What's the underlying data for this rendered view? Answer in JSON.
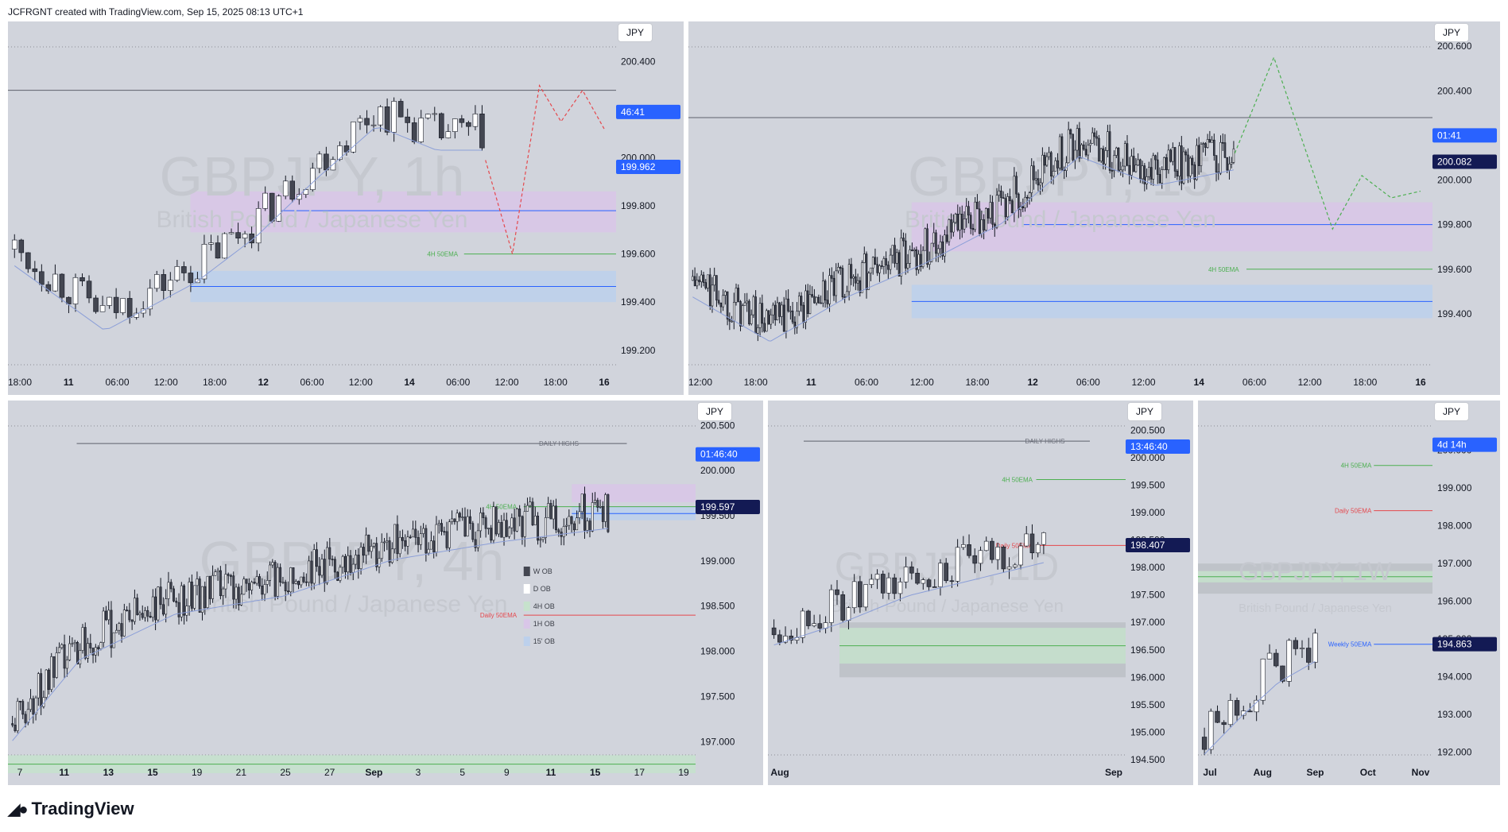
{
  "header": {
    "credit": "JCFRGNT created with TradingView.com, Sep 15, 2025 08:13 UTC+1"
  },
  "footer": {
    "brand": "TradingView",
    "logo_icon": "tradingview-logo-icon"
  },
  "colors": {
    "panel_bg": "#d1d4dc",
    "bull": "#ffffff",
    "bear": "#434651",
    "wick": "#131722",
    "ema": "#8c9fd8",
    "zone_blue": "#bcd0ec",
    "zone_purple": "#d9c6e8",
    "zone_green": "#c6e2cc",
    "zone_grey": "#bcbfc6",
    "price_tag": "#2962ff",
    "price_tag_dark": "#131a54",
    "projection_red": "#e5484d",
    "projection_green": "#4caf50"
  },
  "chart_data": [
    {
      "id": "p1",
      "type": "candlestick",
      "watermark": "GBPJPY, 1h",
      "watermark_sub": "British Pound / Japanese Yen",
      "currency": "JPY",
      "ylim": [
        199.12,
        200.5
      ],
      "y_ticks": [
        "200.400",
        "200",
        "200.000",
        "199.800",
        "199.600",
        "199.400",
        "199.200"
      ],
      "y_tick_values": [
        200.4,
        200.2,
        200.0,
        199.8,
        199.6,
        199.4,
        199.2
      ],
      "x_ticks": [
        "18:00",
        "11",
        "06:00",
        "12:00",
        "18:00",
        "12",
        "06:00",
        "12:00",
        "14",
        "06:00",
        "12:00",
        "18:00",
        "16"
      ],
      "countdown": "46:41",
      "countdown_value": 200.19,
      "last_price": "199.962",
      "last_value": 199.962,
      "ema_label": "4H 50EMA",
      "ema_value": 199.6,
      "level": 200.28,
      "trend": [
        [
          0,
          199.62
        ],
        [
          12,
          199.35
        ],
        [
          24,
          199.55
        ],
        [
          32,
          199.74
        ],
        [
          40,
          199.98
        ],
        [
          48,
          200.2
        ],
        [
          56,
          200.1
        ],
        [
          62,
          200.1
        ]
      ],
      "projection": [
        [
          0,
          199.99
        ],
        [
          5,
          199.6
        ],
        [
          10,
          200.3
        ],
        [
          14,
          200.15
        ],
        [
          18,
          200.28
        ],
        [
          22,
          200.12
        ]
      ],
      "projection_color": "red",
      "zones": [
        [
          199.86,
          199.69,
          "purple"
        ],
        [
          199.78,
          199.76,
          "blue_line"
        ],
        [
          199.53,
          199.4,
          "blue"
        ]
      ]
    },
    {
      "id": "p2",
      "type": "candlestick",
      "watermark": "GBPJPY, 15",
      "watermark_sub": "British Pound / Japanese Yen",
      "currency": "JPY",
      "ylim": [
        199.15,
        200.64
      ],
      "y_ticks": [
        "200.600",
        "200.400",
        "200",
        "200.000",
        "199.800",
        "199.600",
        "199.400"
      ],
      "y_tick_values": [
        200.6,
        200.4,
        200.2,
        200.0,
        199.8,
        199.6,
        199.4
      ],
      "x_ticks": [
        "12:00",
        "18:00",
        "11",
        "06:00",
        "12:00",
        "18:00",
        "12",
        "06:00",
        "12:00",
        "14",
        "06:00",
        "12:00",
        "18:00",
        "16"
      ],
      "countdown": "01:41",
      "countdown_value": 200.2,
      "last_price": "200.082",
      "last_value": 200.082,
      "ema_label": "4H 50EMA",
      "ema_value": 199.6,
      "level": 200.28,
      "trend": [
        [
          0,
          199.55
        ],
        [
          35,
          199.35
        ],
        [
          70,
          199.55
        ],
        [
          105,
          199.7
        ],
        [
          140,
          199.88
        ],
        [
          175,
          200.18
        ],
        [
          210,
          200.05
        ],
        [
          245,
          200.12
        ]
      ],
      "projection": [
        [
          0,
          200.12
        ],
        [
          8,
          200.55
        ],
        [
          20,
          199.78
        ],
        [
          26,
          200.02
        ],
        [
          32,
          199.92
        ],
        [
          38,
          199.95
        ]
      ],
      "projection_color": "green",
      "zones": [
        [
          199.9,
          199.68,
          "purple"
        ],
        [
          199.8,
          199.76,
          "blue_line"
        ],
        [
          199.53,
          199.38,
          "blue"
        ]
      ]
    },
    {
      "id": "p3",
      "type": "candlestick",
      "watermark": "GBPJPY, 4h",
      "watermark_sub": "British Pound / Japanese Yen",
      "currency": "JPY",
      "ylim": [
        196.8,
        200.6
      ],
      "y_ticks": [
        "200.500",
        "200.000",
        "199.500",
        "199.000",
        "198.500",
        "198.000",
        "197.500",
        "197.000"
      ],
      "y_tick_values": [
        200.5,
        200.0,
        199.5,
        199.0,
        198.5,
        198.0,
        197.5,
        197.0
      ],
      "x_ticks": [
        "7",
        "11",
        "13",
        "15",
        "19",
        "21",
        "25",
        "27",
        "Sep",
        "3",
        "5",
        "9",
        "11",
        "15",
        "17",
        "19"
      ],
      "countdown": "01:46:40",
      "countdown_value": 200.18,
      "last_price": "199.597",
      "last_value": 199.597,
      "ema_label": "4H 50EMA",
      "ema_value": 199.6,
      "daily_ema_label": "Daily 50EMA",
      "daily_ema_value": 198.4,
      "highs_label": "DAILY HIGHS",
      "level": 200.3,
      "trend": [
        [
          0,
          197.2
        ],
        [
          25,
          198.1
        ],
        [
          60,
          198.6
        ],
        [
          100,
          198.8
        ],
        [
          140,
          199.2
        ],
        [
          180,
          199.4
        ],
        [
          220,
          199.55
        ]
      ],
      "zones": [
        [
          199.85,
          199.65,
          "purple"
        ],
        [
          199.6,
          199.45,
          "blue"
        ],
        [
          196.85,
          196.65,
          "green"
        ]
      ],
      "legend": [
        "W OB",
        "D OB",
        "4H OB",
        "1H OB",
        "15' OB"
      ]
    },
    {
      "id": "p4",
      "type": "candlestick",
      "watermark": "GBPJPY, 1D",
      "watermark_sub": "British Pound / Japanese Yen",
      "currency": "JPY",
      "ylim": [
        194.5,
        200.75
      ],
      "y_ticks": [
        "200.500",
        "200.000",
        "199.500",
        "199.000",
        "198.500",
        "198.000",
        "197.500",
        "197.000",
        "196.500",
        "196.000",
        "195.500",
        "195.000",
        "194.500"
      ],
      "y_tick_values": [
        200.5,
        200.0,
        199.5,
        199.0,
        198.5,
        198.0,
        197.5,
        197.0,
        196.5,
        196.0,
        195.5,
        195.0,
        194.5
      ],
      "x_ticks": [
        "Aug",
        "Sep"
      ],
      "countdown": "13:46:40",
      "countdown_value": 200.2,
      "last_price": "198.407",
      "last_value": 198.407,
      "ema_label": "4H 50EMA",
      "ema_value": 199.6,
      "daily_ema_label": "Daily 50EMA",
      "daily_ema_value": 198.4,
      "highs_label": "DAILY HIGHS",
      "level": 200.3,
      "trend": [
        [
          0,
          196.9
        ],
        [
          10,
          197.3
        ],
        [
          20,
          197.8
        ],
        [
          30,
          198.1
        ],
        [
          40,
          198.4
        ]
      ],
      "zones": [
        [
          197.0,
          196.0,
          "grey"
        ],
        [
          196.9,
          196.25,
          "green"
        ]
      ]
    },
    {
      "id": "p5",
      "type": "candlestick",
      "watermark": "GBPJPY, 1W",
      "watermark_sub": "British Pound / Japanese Yen",
      "currency": "JPY",
      "ylim": [
        191.8,
        200.9
      ],
      "y_ticks": [
        "200.000",
        "199.000",
        "198.000",
        "197.000",
        "196.000",
        "195.000",
        "194.000",
        "193.000",
        "192.000"
      ],
      "y_tick_values": [
        200.0,
        199.0,
        198.0,
        197.0,
        196.0,
        195.0,
        194.0,
        193.0,
        192.0
      ],
      "x_ticks": [
        "Jul",
        "Aug",
        "Sep",
        "Oct",
        "Nov"
      ],
      "countdown": "4d 14h",
      "countdown_value": 200.15,
      "last_price": "194.863",
      "last_value": 194.863,
      "ema_label": "4H 50EMA",
      "ema_value": 199.6,
      "daily_ema_label": "Daily 50EMA",
      "daily_ema_value": 198.4,
      "weekly_ema_label": "Weekly 50EMA",
      "weekly_ema_value": 194.86,
      "trend": [
        [
          0,
          192.4
        ],
        [
          6,
          193.4
        ],
        [
          12,
          194.3
        ],
        [
          18,
          194.86
        ]
      ],
      "zones": [
        [
          197.0,
          196.2,
          "grey"
        ],
        [
          196.8,
          196.5,
          "green"
        ]
      ]
    }
  ]
}
